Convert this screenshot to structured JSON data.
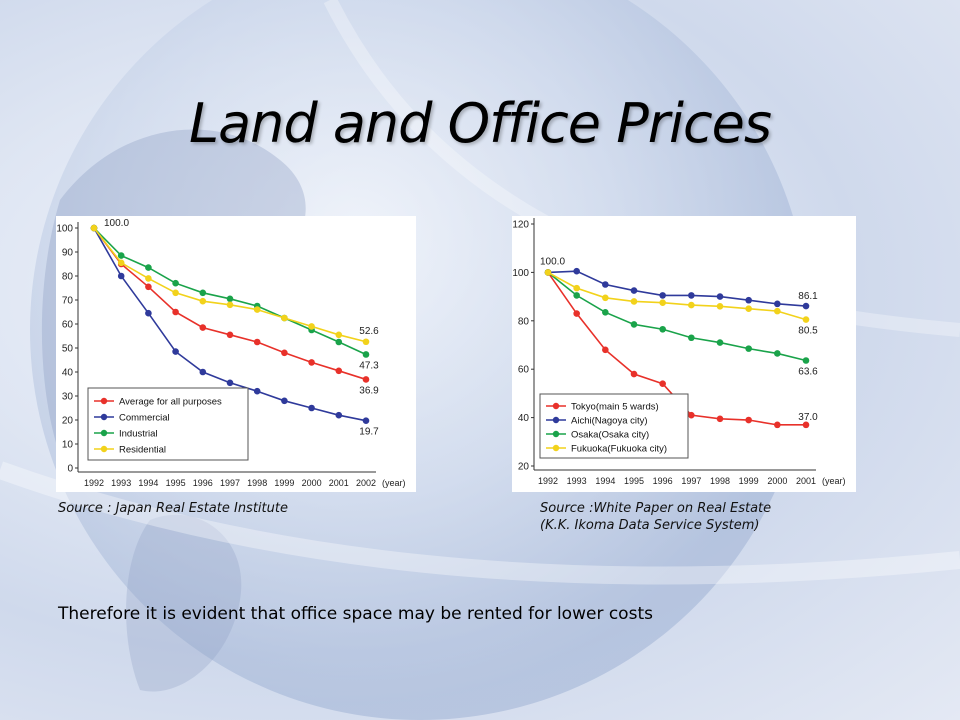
{
  "slide": {
    "title": "Land and Office Prices",
    "source_left": "Source :  Japan Real Estate Institute",
    "source_right_line1": "Source :White Paper on Real Estate",
    "source_right_line2": "(K.K. Ikoma Data Service System)",
    "conclusion": "Therefore it is evident that office space may be rented for lower costs"
  },
  "chart_data": [
    {
      "type": "line",
      "x": [
        "1992",
        "1993",
        "1994",
        "1995",
        "1996",
        "1997",
        "1998",
        "1999",
        "2000",
        "2001",
        "2002"
      ],
      "x_unit": "(year)",
      "ylim": [
        0,
        100
      ],
      "yticks": [
        0,
        10,
        20,
        30,
        40,
        50,
        60,
        70,
        80,
        90,
        100
      ],
      "grid": false,
      "legend_position": "bottom-left",
      "start_label": "100.0",
      "series": [
        {
          "name": "Average for all purposes",
          "color": "#e8312a",
          "end_label": "36.9",
          "values": [
            100,
            85,
            75.5,
            65,
            58.5,
            55.5,
            52.5,
            48,
            44,
            40.5,
            36.9
          ]
        },
        {
          "name": "Commercial",
          "color": "#2f3a9b",
          "end_label": "19.7",
          "values": [
            100,
            80,
            64.5,
            48.5,
            40,
            35.5,
            32,
            28,
            25,
            22,
            19.7
          ]
        },
        {
          "name": "Industrial",
          "color": "#1aa34a",
          "end_label": "47.3",
          "values": [
            100,
            88.5,
            83.5,
            77,
            73,
            70.5,
            67.5,
            62.5,
            57.5,
            52.5,
            47.3
          ]
        },
        {
          "name": "Residential",
          "color": "#f2d21b",
          "end_label": "52.6",
          "values": [
            100,
            85.5,
            79,
            73,
            69.5,
            68,
            66,
            62.5,
            59,
            55.5,
            52.6
          ]
        }
      ]
    },
    {
      "type": "line",
      "x": [
        "1992",
        "1993",
        "1994",
        "1995",
        "1996",
        "1997",
        "1998",
        "1999",
        "2000",
        "2001"
      ],
      "x_unit": "(year)",
      "ylim": [
        20,
        120
      ],
      "yticks": [
        20,
        40,
        60,
        80,
        100,
        120
      ],
      "grid": false,
      "legend_position": "bottom-left",
      "start_label": "100.0",
      "series": [
        {
          "name": "Tokyo(main 5 wards)",
          "color": "#e8312a",
          "end_label": "37.0",
          "values": [
            100,
            83,
            68,
            58,
            54,
            41,
            39.5,
            39,
            37,
            37.0
          ]
        },
        {
          "name": "Aichi(Nagoya city)",
          "color": "#2f3a9b",
          "end_label": "86.1",
          "values": [
            100,
            100.5,
            95,
            92.5,
            90.5,
            90.5,
            90,
            88.5,
            87,
            86.1
          ]
        },
        {
          "name": "Osaka(Osaka city)",
          "color": "#1aa34a",
          "end_label": "63.6",
          "values": [
            100,
            90.5,
            83.5,
            78.5,
            76.5,
            73,
            71,
            68.5,
            66.5,
            63.6
          ]
        },
        {
          "name": "Fukuoka(Fukuoka city)",
          "color": "#f2d21b",
          "end_label": "80.5",
          "values": [
            100,
            93.5,
            89.5,
            88,
            87.5,
            86.5,
            86,
            85,
            84,
            80.5
          ]
        }
      ]
    }
  ]
}
